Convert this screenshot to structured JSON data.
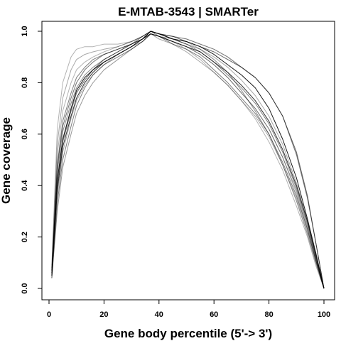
{
  "chart_data": {
    "type": "line",
    "title": "E-MTAB-3543 | SMARTer",
    "xlabel": "Gene body percentile (5'-> 3')",
    "ylabel": "Gene coverage",
    "xlim": [
      0,
      100
    ],
    "ylim": [
      0,
      1
    ],
    "xticks": [
      0,
      20,
      40,
      60,
      80,
      100
    ],
    "yticks": [
      0.0,
      0.2,
      0.4,
      0.6,
      0.8,
      1.0
    ],
    "ytick_labels": [
      "0.0",
      "0.2",
      "0.4",
      "0.6",
      "0.8",
      "1.0"
    ],
    "grid": false,
    "legend": "none",
    "line_color": "#000000",
    "series": [
      {
        "x": [
          1,
          3,
          5,
          8,
          10,
          13,
          16,
          20,
          25,
          30,
          34,
          37,
          40,
          45,
          50,
          55,
          60,
          65,
          70,
          75,
          80,
          85,
          90,
          94,
          97,
          100
        ],
        "y": [
          0.07,
          0.42,
          0.58,
          0.7,
          0.77,
          0.82,
          0.85,
          0.88,
          0.91,
          0.94,
          0.97,
          1.0,
          0.99,
          0.97,
          0.96,
          0.94,
          0.91,
          0.87,
          0.83,
          0.78,
          0.7,
          0.58,
          0.43,
          0.27,
          0.14,
          0.0
        ],
        "color": "#000000",
        "alpha": 0.9
      },
      {
        "x": [
          1,
          3,
          5,
          8,
          10,
          13,
          16,
          20,
          25,
          30,
          34,
          37,
          40,
          45,
          50,
          55,
          60,
          65,
          70,
          75,
          80,
          85,
          90,
          94,
          97,
          100
        ],
        "y": [
          0.05,
          0.38,
          0.55,
          0.67,
          0.74,
          0.8,
          0.84,
          0.88,
          0.91,
          0.94,
          0.97,
          0.99,
          0.98,
          0.96,
          0.94,
          0.92,
          0.88,
          0.84,
          0.79,
          0.73,
          0.65,
          0.54,
          0.4,
          0.26,
          0.13,
          0.0
        ],
        "color": "#000000",
        "alpha": 0.8
      },
      {
        "x": [
          1,
          3,
          5,
          8,
          10,
          13,
          16,
          20,
          25,
          30,
          34,
          37,
          40,
          45,
          50,
          55,
          60,
          65,
          70,
          75,
          80,
          85,
          90,
          94,
          97,
          100
        ],
        "y": [
          0.06,
          0.47,
          0.63,
          0.74,
          0.8,
          0.85,
          0.88,
          0.91,
          0.93,
          0.95,
          0.98,
          1.0,
          0.99,
          0.98,
          0.97,
          0.95,
          0.93,
          0.9,
          0.86,
          0.82,
          0.76,
          0.67,
          0.52,
          0.35,
          0.18,
          0.0
        ],
        "color": "#000000",
        "alpha": 0.55
      },
      {
        "x": [
          1,
          3,
          5,
          8,
          10,
          13,
          16,
          20,
          25,
          30,
          34,
          37,
          40,
          45,
          50,
          55,
          60,
          65,
          70,
          75,
          80,
          85,
          90,
          94,
          97,
          100
        ],
        "y": [
          0.04,
          0.33,
          0.5,
          0.63,
          0.71,
          0.78,
          0.83,
          0.87,
          0.9,
          0.93,
          0.96,
          0.99,
          0.98,
          0.95,
          0.93,
          0.9,
          0.85,
          0.8,
          0.74,
          0.68,
          0.6,
          0.49,
          0.36,
          0.23,
          0.11,
          0.0
        ],
        "color": "#000000",
        "alpha": 0.5
      },
      {
        "x": [
          1,
          3,
          5,
          8,
          10,
          13,
          16,
          20,
          25,
          30,
          34,
          37,
          40,
          45,
          50,
          55,
          60,
          65,
          70,
          75,
          80,
          85,
          90,
          94,
          97,
          100
        ],
        "y": [
          0.08,
          0.56,
          0.74,
          0.85,
          0.89,
          0.91,
          0.92,
          0.93,
          0.94,
          0.96,
          0.98,
          1.0,
          0.99,
          0.97,
          0.96,
          0.93,
          0.9,
          0.86,
          0.81,
          0.75,
          0.67,
          0.56,
          0.41,
          0.26,
          0.13,
          0.0
        ],
        "color": "#000000",
        "alpha": 0.35
      },
      {
        "x": [
          1,
          3,
          5,
          8,
          10,
          13,
          16,
          20,
          25,
          30,
          34,
          37,
          40,
          45,
          50,
          55,
          60,
          65,
          70,
          75,
          80,
          85,
          90,
          94,
          97,
          100
        ],
        "y": [
          0.09,
          0.62,
          0.8,
          0.9,
          0.93,
          0.94,
          0.94,
          0.95,
          0.95,
          0.96,
          0.98,
          1.0,
          0.98,
          0.96,
          0.94,
          0.91,
          0.87,
          0.82,
          0.76,
          0.7,
          0.62,
          0.51,
          0.37,
          0.23,
          0.11,
          0.0
        ],
        "color": "#000000",
        "alpha": 0.3
      },
      {
        "x": [
          1,
          3,
          5,
          8,
          10,
          13,
          16,
          20,
          25,
          30,
          34,
          37,
          40,
          45,
          50,
          55,
          60,
          65,
          70,
          75,
          80,
          85,
          90,
          94,
          97,
          100
        ],
        "y": [
          0.06,
          0.45,
          0.61,
          0.72,
          0.78,
          0.83,
          0.86,
          0.89,
          0.92,
          0.95,
          0.97,
          0.99,
          0.98,
          0.97,
          0.95,
          0.93,
          0.89,
          0.84,
          0.77,
          0.69,
          0.6,
          0.48,
          0.34,
          0.21,
          0.1,
          0.0
        ],
        "color": "#000000",
        "alpha": 0.45
      },
      {
        "x": [
          1,
          3,
          5,
          8,
          10,
          13,
          16,
          20,
          25,
          30,
          34,
          37,
          40,
          45,
          50,
          55,
          60,
          65,
          70,
          75,
          80,
          85,
          90,
          94,
          97,
          100
        ],
        "y": [
          0.05,
          0.4,
          0.57,
          0.69,
          0.76,
          0.81,
          0.85,
          0.89,
          0.92,
          0.95,
          0.97,
          1.0,
          0.99,
          0.98,
          0.96,
          0.94,
          0.92,
          0.89,
          0.86,
          0.82,
          0.76,
          0.67,
          0.53,
          0.36,
          0.18,
          0.0
        ],
        "color": "#000000",
        "alpha": 0.6
      },
      {
        "x": [
          1,
          3,
          5,
          8,
          10,
          13,
          16,
          20,
          25,
          30,
          34,
          37,
          40,
          45,
          50,
          55,
          60,
          65,
          70,
          75,
          80,
          85,
          90,
          94,
          97,
          100
        ],
        "y": [
          0.07,
          0.52,
          0.69,
          0.8,
          0.85,
          0.88,
          0.9,
          0.92,
          0.94,
          0.96,
          0.98,
          1.0,
          0.98,
          0.96,
          0.93,
          0.89,
          0.84,
          0.79,
          0.73,
          0.66,
          0.57,
          0.46,
          0.32,
          0.2,
          0.09,
          0.0
        ],
        "color": "#000000",
        "alpha": 0.3
      },
      {
        "x": [
          1,
          3,
          5,
          8,
          10,
          13,
          16,
          20,
          25,
          30,
          34,
          37,
          40,
          45,
          50,
          55,
          60,
          65,
          70,
          75,
          80,
          85,
          90,
          94,
          97,
          100
        ],
        "y": [
          0.04,
          0.3,
          0.47,
          0.6,
          0.68,
          0.75,
          0.8,
          0.85,
          0.89,
          0.93,
          0.96,
          0.99,
          0.98,
          0.96,
          0.94,
          0.91,
          0.87,
          0.82,
          0.76,
          0.7,
          0.62,
          0.51,
          0.38,
          0.24,
          0.12,
          0.0
        ],
        "color": "#000000",
        "alpha": 0.4
      },
      {
        "x": [
          1,
          3,
          5,
          8,
          10,
          13,
          16,
          20,
          25,
          30,
          34,
          37,
          40,
          45,
          50,
          55,
          60,
          65,
          70,
          75,
          80,
          85,
          90,
          94,
          97,
          100
        ],
        "y": [
          0.06,
          0.48,
          0.65,
          0.76,
          0.82,
          0.86,
          0.89,
          0.91,
          0.93,
          0.95,
          0.97,
          1.0,
          0.99,
          0.97,
          0.95,
          0.92,
          0.88,
          0.83,
          0.78,
          0.72,
          0.64,
          0.53,
          0.39,
          0.25,
          0.12,
          0.0
        ],
        "color": "#000000",
        "alpha": 0.5
      },
      {
        "x": [
          1,
          3,
          5,
          8,
          10,
          13,
          16,
          20,
          25,
          30,
          34,
          37,
          40,
          45,
          50,
          55,
          60,
          65,
          70,
          75,
          80,
          85,
          90,
          94,
          97,
          100
        ],
        "y": [
          0.05,
          0.36,
          0.53,
          0.66,
          0.73,
          0.79,
          0.83,
          0.87,
          0.91,
          0.94,
          0.96,
          0.99,
          0.97,
          0.95,
          0.92,
          0.88,
          0.84,
          0.79,
          0.73,
          0.67,
          0.59,
          0.48,
          0.35,
          0.22,
          0.11,
          0.0
        ],
        "color": "#000000",
        "alpha": 0.35
      }
    ]
  }
}
